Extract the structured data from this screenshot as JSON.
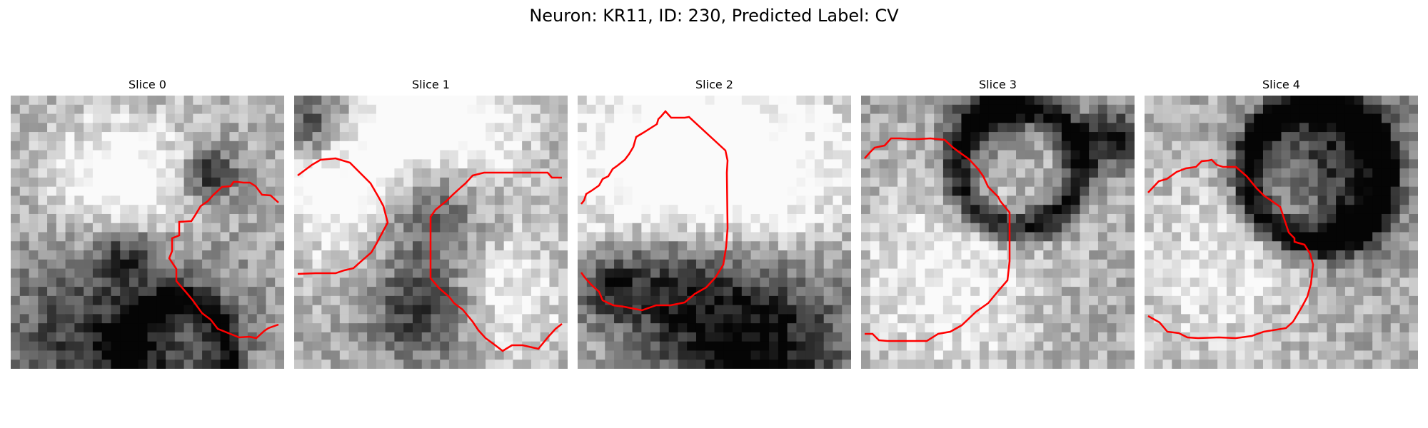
{
  "figure": {
    "title": "Neuron: KR11, ID: 230, Predicted Label: CV",
    "contour_color": "#ff0000",
    "background_color": "#ffffff",
    "colormap": "grayscale",
    "panels": [
      {
        "title": "Slice 0",
        "image_desc": "grayscale microscopy patch, dark ring in lower-left, blob upper-middle"
      },
      {
        "title": "Slice 1",
        "image_desc": "grayscale microscopy patch, X-shaped dark cross between bright lobes"
      },
      {
        "title": "Slice 2",
        "image_desc": "grayscale microscopy patch, large bright blob upper-left, dark region bottom"
      },
      {
        "title": "Slice 3",
        "image_desc": "grayscale microscopy patch, dark arc in upper-right"
      },
      {
        "title": "Slice 4",
        "image_desc": "grayscale microscopy patch, dark ring upper-right"
      }
    ]
  }
}
